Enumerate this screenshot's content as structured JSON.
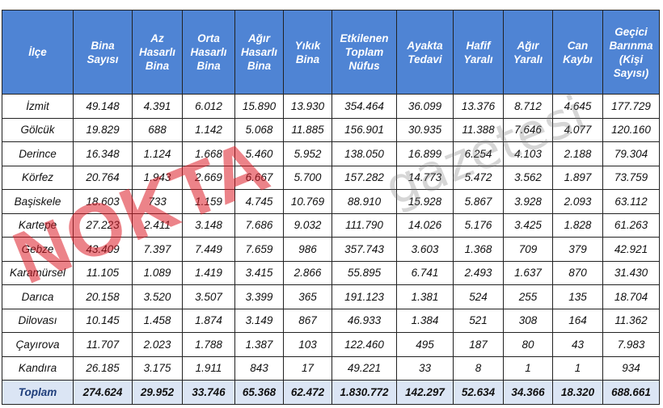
{
  "table": {
    "header": [
      "İlçe",
      "Bina\nSayısı",
      "Az\nHasarlı\nBina",
      "Orta\nHasarlı\nBina",
      "Ağır\nHasarlı\nBina",
      "Yıkık\nBina",
      "Etkilenen\nToplam\nNüfus",
      "Ayakta\nTedavi",
      "Hafif\nYaralı",
      "Ağır\nYaralı",
      "Can\nKaybı",
      "Geçici\nBarınma\n(Kişi\nSayısı)"
    ],
    "rows": [
      [
        "İzmit",
        "49.148",
        "4.391",
        "6.012",
        "15.890",
        "13.930",
        "354.464",
        "36.099",
        "13.376",
        "8.712",
        "4.645",
        "177.729"
      ],
      [
        "Gölcük",
        "19.829",
        "688",
        "1.142",
        "5.068",
        "11.885",
        "156.901",
        "30.935",
        "11.388",
        "7.646",
        "4.077",
        "120.160"
      ],
      [
        "Derince",
        "16.348",
        "1.124",
        "1.668",
        "5.460",
        "5.952",
        "138.050",
        "16.899",
        "6.254",
        "4.103",
        "2.188",
        "79.304"
      ],
      [
        "Körfez",
        "20.764",
        "1.943",
        "2.669",
        "6.667",
        "5.700",
        "157.282",
        "14.773",
        "5.472",
        "3.562",
        "1.897",
        "73.759"
      ],
      [
        "Başiskele",
        "18.603",
        "733",
        "1.159",
        "4.745",
        "10.769",
        "88.910",
        "15.928",
        "5.867",
        "3.928",
        "2.093",
        "63.112"
      ],
      [
        "Kartepe",
        "27.223",
        "2.411",
        "3.148",
        "7.686",
        "9.032",
        "111.790",
        "14.026",
        "5.176",
        "3.425",
        "1.828",
        "61.263"
      ],
      [
        "Gebze",
        "43.409",
        "7.397",
        "7.449",
        "7.659",
        "986",
        "357.743",
        "3.603",
        "1.368",
        "709",
        "379",
        "42.921"
      ],
      [
        "Karamürsel",
        "11.105",
        "1.089",
        "1.419",
        "3.415",
        "2.866",
        "55.895",
        "6.741",
        "2.493",
        "1.637",
        "870",
        "31.430"
      ],
      [
        "Darıca",
        "20.158",
        "3.520",
        "3.507",
        "3.399",
        "365",
        "191.123",
        "1.381",
        "524",
        "255",
        "135",
        "18.704"
      ],
      [
        "Dilovası",
        "10.145",
        "1.458",
        "1.874",
        "3.149",
        "867",
        "46.933",
        "1.384",
        "521",
        "308",
        "164",
        "11.362"
      ],
      [
        "Çayırova",
        "11.707",
        "2.023",
        "1.788",
        "1.387",
        "103",
        "122.460",
        "495",
        "187",
        "80",
        "43",
        "7.983"
      ],
      [
        "Kandıra",
        "26.185",
        "3.175",
        "1.911",
        "843",
        "17",
        "49.221",
        "33",
        "8",
        "1",
        "1",
        "934"
      ]
    ],
    "total": [
      "Toplam",
      "274.624",
      "29.952",
      "33.746",
      "65.368",
      "62.472",
      "1.830.772",
      "142.297",
      "52.634",
      "34.366",
      "18.320",
      "688.661"
    ]
  },
  "watermark": {
    "logo": "NOKTA",
    "tagline": "gazetesi"
  }
}
